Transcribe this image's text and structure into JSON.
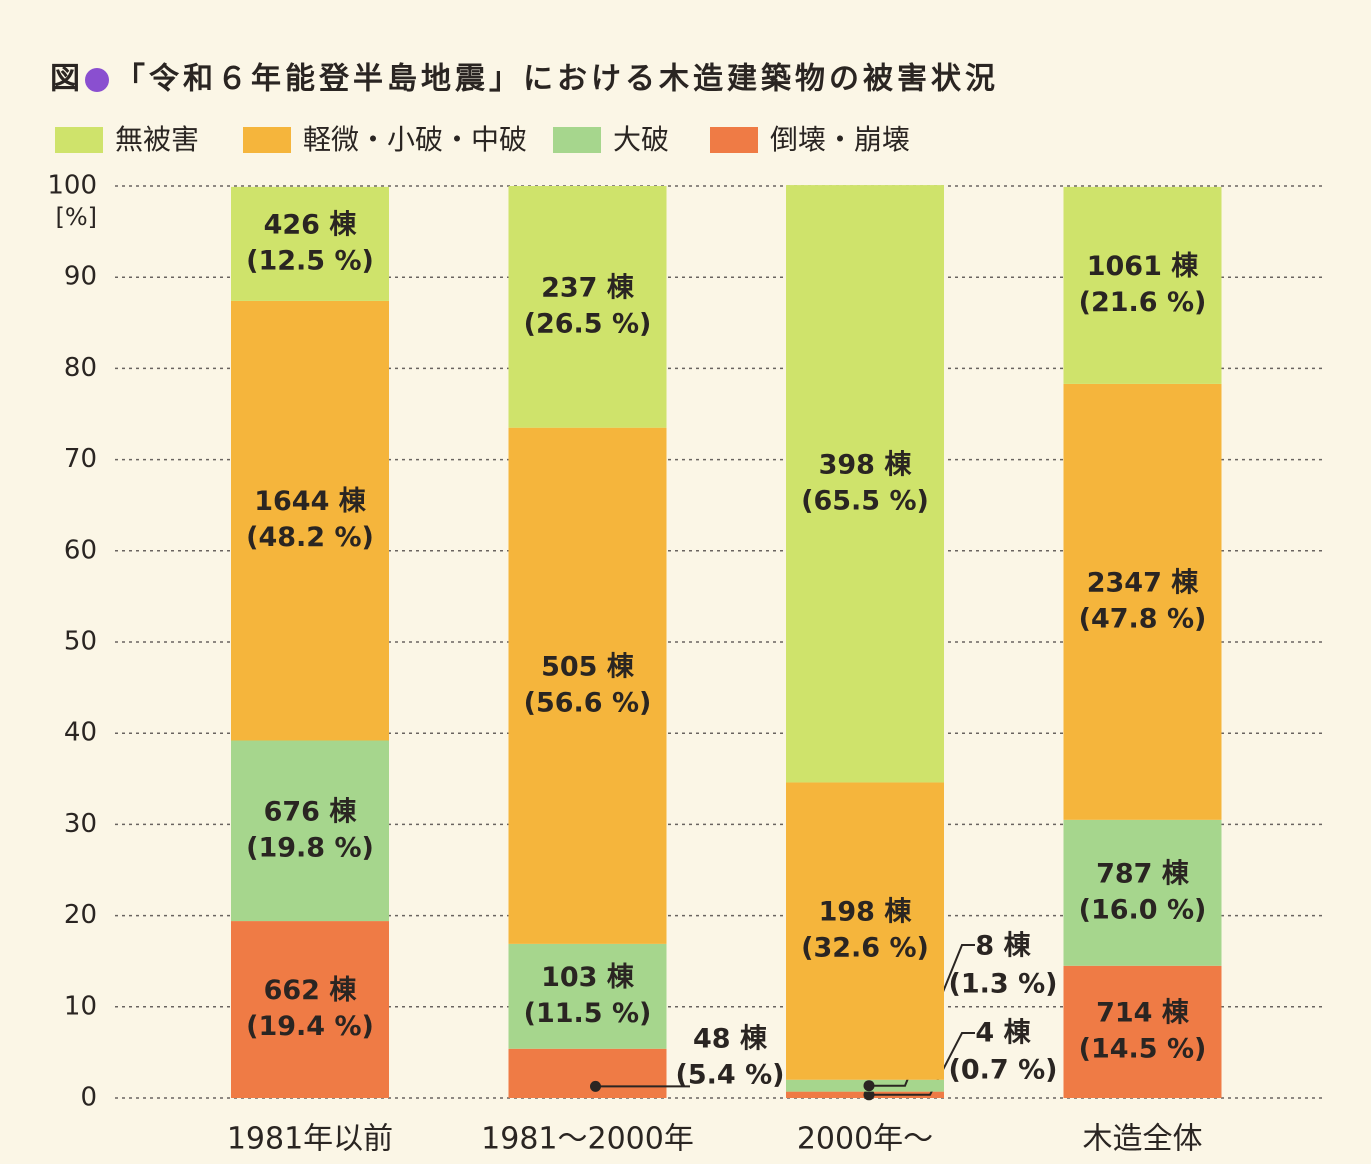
{
  "chart_data": {
    "type": "stacked_bar",
    "title_prefix": "図",
    "title": "「令和６年能登半島地震」における木造建築物の被害状況",
    "y_unit": "[%]",
    "categories": [
      "1981年以前",
      "1981～2000年",
      "2000年～",
      "木造全体"
    ],
    "series": [
      {
        "name": "無被害",
        "color": "#cfe36b",
        "values": [
          12.5,
          26.5,
          65.5,
          21.6
        ],
        "value_labels": [
          "(12.5 %)",
          "(26.5 %)",
          "(65.5 %)",
          "(21.6 %)"
        ],
        "count_labels": [
          "426 棟",
          "237 棟",
          "398 棟",
          "1061 棟"
        ]
      },
      {
        "name": "軽微・小破・中破",
        "color": "#f5b53c",
        "values": [
          48.2,
          56.6,
          32.6,
          47.8
        ],
        "value_labels": [
          "(48.2 %)",
          "(56.6 %)",
          "(32.6 %)",
          "(47.8 %)"
        ],
        "count_labels": [
          "1644 棟",
          "505 棟",
          "198 棟",
          "2347 棟"
        ]
      },
      {
        "name": "大破",
        "color": "#a6d68d",
        "values": [
          19.8,
          11.5,
          1.3,
          16.0
        ],
        "value_labels": [
          "(19.8 %)",
          "(11.5 %)",
          "(1.3 %)",
          "(16.0 %)"
        ],
        "count_labels": [
          "676 棟",
          "103 棟",
          "8 棟",
          "787 棟"
        ]
      },
      {
        "name": "倒壊・崩壊",
        "color": "#ef7b45",
        "values": [
          19.4,
          5.4,
          0.7,
          14.5
        ],
        "value_labels": [
          "(19.4 %)",
          "(5.4 %)",
          "(0.7 %)",
          "(14.5 %)"
        ],
        "count_labels": [
          "662 棟",
          "48 棟",
          "4 棟",
          "714 棟"
        ]
      }
    ],
    "ylim": [
      0,
      100
    ],
    "yticks": [
      0,
      10,
      20,
      30,
      40,
      50,
      60,
      70,
      80,
      90,
      100
    ],
    "grid": true,
    "title_dot_color": "#8a4fd0"
  }
}
